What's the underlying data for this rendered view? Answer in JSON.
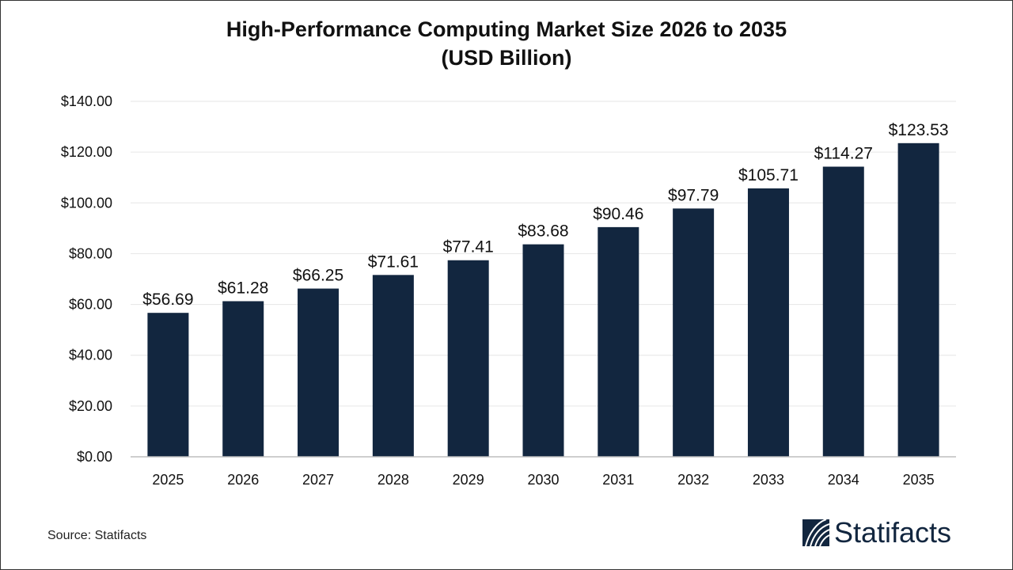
{
  "chart_data": {
    "type": "bar",
    "title_line1": "High-Performance Computing Market Size 2026 to 2035",
    "title_line2": "(USD Billion)",
    "categories": [
      "2025",
      "2026",
      "2027",
      "2028",
      "2029",
      "2030",
      "2031",
      "2032",
      "2033",
      "2034",
      "2035"
    ],
    "values": [
      56.69,
      61.28,
      66.25,
      71.61,
      77.41,
      83.68,
      90.46,
      97.79,
      105.71,
      114.27,
      123.53
    ],
    "data_labels": [
      "$56.69",
      "$61.28",
      "$66.25",
      "$71.61",
      "$77.41",
      "$83.68",
      "$90.46",
      "$97.79",
      "$105.71",
      "$114.27",
      "$123.53"
    ],
    "yticks": [
      0,
      20,
      40,
      60,
      80,
      100,
      120,
      140
    ],
    "ytick_labels": [
      "$0.00",
      "$20.00",
      "$40.00",
      "$60.00",
      "$80.00",
      "$100.00",
      "$120.00",
      "$140.00"
    ],
    "ylim": [
      0,
      140
    ],
    "grid": true,
    "bar_color": "#12263f"
  },
  "source": "Source: Statifacts",
  "logo": {
    "text": "Statifacts",
    "color": "#12263f"
  }
}
